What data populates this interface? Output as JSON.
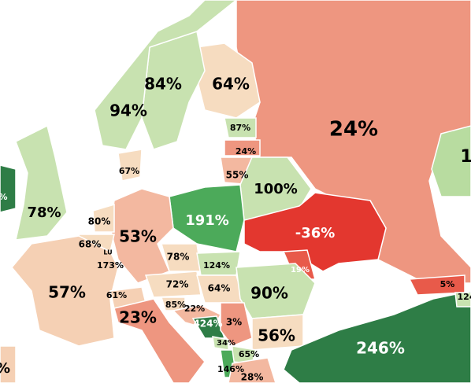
{
  "labels": [
    "94%",
    "84%",
    "64%",
    "24%",
    "87%",
    "24%",
    "55%",
    "100%",
    "67%",
    "78%",
    "80%",
    "68%",
    "LU",
    "173%",
    "53%",
    "191%",
    "-36%",
    "19%",
    "57%",
    "78%",
    "124%",
    "72%",
    "64%",
    "90%",
    "61%",
    "85%",
    "22%",
    "424%",
    "3%",
    "34%",
    "23%",
    "56%",
    "65%",
    "146%",
    "28%",
    "246%",
    "5%",
    "124",
    "1",
    "%",
    "%"
  ]
}
